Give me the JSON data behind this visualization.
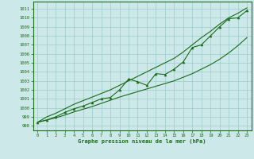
{
  "xlabel": "Graphe pression niveau de la mer (hPa)",
  "xlim": [
    -0.5,
    23.5
  ],
  "ylim": [
    997.5,
    1011.8
  ],
  "yticks": [
    998,
    999,
    1000,
    1001,
    1002,
    1003,
    1004,
    1005,
    1006,
    1007,
    1008,
    1009,
    1010,
    1011
  ],
  "xticks": [
    0,
    1,
    2,
    3,
    4,
    5,
    6,
    7,
    8,
    9,
    10,
    11,
    12,
    13,
    14,
    15,
    16,
    17,
    18,
    19,
    20,
    21,
    22,
    23
  ],
  "bg_color": "#cce8e8",
  "grid_color": "#99cccc",
  "line_color": "#1a6b1a",
  "x_data": [
    0,
    1,
    2,
    3,
    4,
    5,
    6,
    7,
    8,
    9,
    10,
    11,
    12,
    13,
    14,
    15,
    16,
    17,
    18,
    19,
    20,
    21,
    22,
    23
  ],
  "y_top": [
    998.4,
    999.0,
    999.4,
    999.9,
    1000.4,
    1000.8,
    1001.2,
    1001.6,
    1002.0,
    1002.5,
    1003.0,
    1003.5,
    1004.0,
    1004.5,
    1005.0,
    1005.5,
    1006.2,
    1007.0,
    1007.8,
    1008.5,
    1009.3,
    1010.0,
    1010.5,
    1011.1
  ],
  "y_bot": [
    998.4,
    998.65,
    998.9,
    999.2,
    999.55,
    999.85,
    1000.15,
    1000.5,
    1000.85,
    1001.2,
    1001.5,
    1001.8,
    1002.1,
    1002.4,
    1002.7,
    1003.0,
    1003.4,
    1003.8,
    1004.3,
    1004.8,
    1005.4,
    1006.1,
    1006.9,
    1007.8
  ],
  "y_zigzag": [
    998.4,
    998.65,
    999.0,
    999.5,
    999.9,
    1000.2,
    1000.6,
    1001.0,
    1001.15,
    1002.0,
    1003.2,
    1002.9,
    1002.5,
    1003.8,
    1003.7,
    1004.3,
    1005.1,
    1006.7,
    1007.0,
    1008.0,
    1009.0,
    1009.9,
    1010.0,
    1010.8
  ]
}
